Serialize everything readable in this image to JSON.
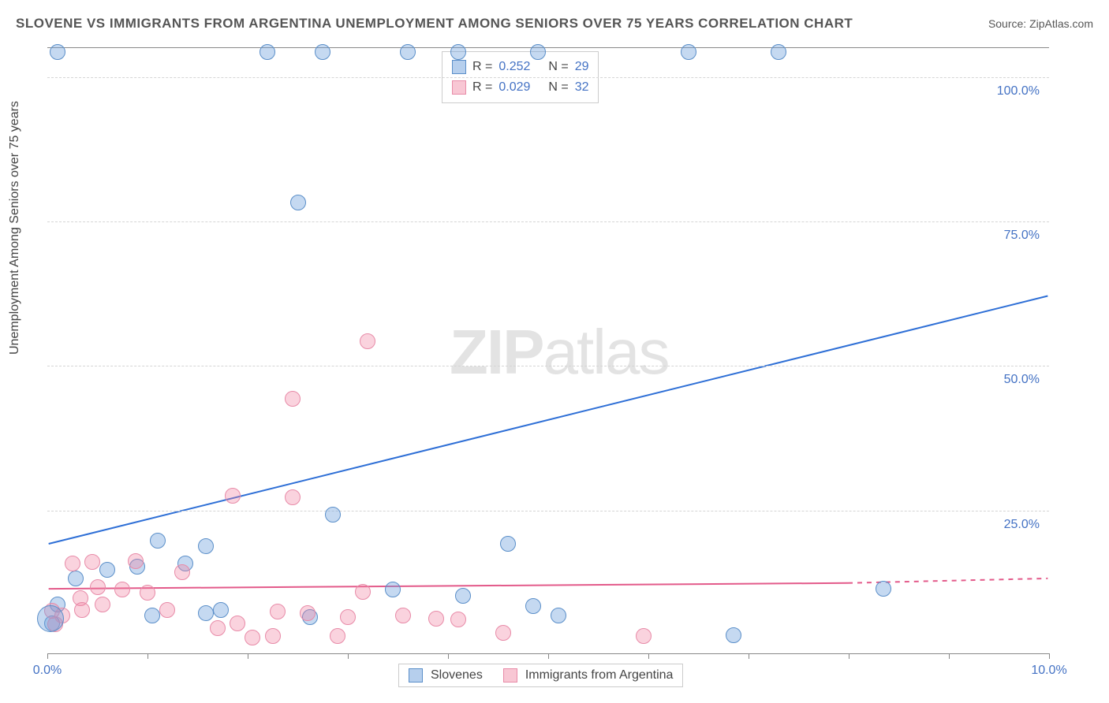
{
  "title": "SLOVENE VS IMMIGRANTS FROM ARGENTINA UNEMPLOYMENT AMONG SENIORS OVER 75 YEARS CORRELATION CHART",
  "source": "Source: ZipAtlas.com",
  "ylabel": "Unemployment Among Seniors over 75 years",
  "watermark_a": "ZIP",
  "watermark_b": "atlas",
  "chart": {
    "type": "scatter",
    "xlim": [
      0,
      10
    ],
    "ylim": [
      0,
      105
    ],
    "xtick_positions": [
      0,
      1,
      2,
      3,
      4,
      5,
      6,
      7,
      8,
      9,
      10
    ],
    "xtick_labels": {
      "0": "0.0%",
      "10": "10.0%"
    },
    "ytick_positions": [
      25,
      50,
      75,
      100
    ],
    "ytick_labels": [
      "25.0%",
      "50.0%",
      "75.0%",
      "100.0%"
    ],
    "grid_color": "#d5d5d5",
    "background_color": "#ffffff",
    "marker_radius": 10,
    "series": {
      "blue": {
        "label": "Slovenes",
        "fill": "rgba(110,160,220,0.4)",
        "stroke": "#5b8fc9",
        "R": "0.252",
        "N": "29",
        "trend": {
          "x1": 0,
          "y1": 19,
          "x2": 10,
          "y2": 62,
          "color": "#2e6fd6",
          "width": 2
        },
        "points": [
          [
            2.2,
            104
          ],
          [
            2.75,
            104
          ],
          [
            3.6,
            104
          ],
          [
            4.1,
            104
          ],
          [
            4.9,
            104
          ],
          [
            6.4,
            104
          ],
          [
            7.3,
            104
          ],
          [
            0.1,
            104
          ],
          [
            2.5,
            78
          ],
          [
            4.6,
            19
          ],
          [
            2.85,
            24
          ],
          [
            0.28,
            13
          ],
          [
            0.6,
            14.5
          ],
          [
            0.9,
            15
          ],
          [
            1.1,
            19.5
          ],
          [
            1.38,
            15.5
          ],
          [
            1.58,
            18.5
          ],
          [
            0.1,
            8.5
          ],
          [
            1.05,
            6.5
          ],
          [
            1.73,
            7.5
          ],
          [
            1.58,
            7
          ],
          [
            0.05,
            5.2
          ],
          [
            3.45,
            11
          ],
          [
            4.15,
            10
          ],
          [
            4.85,
            8.2
          ],
          [
            5.1,
            6.5
          ],
          [
            8.35,
            11.2
          ],
          [
            6.85,
            3.2
          ],
          [
            2.62,
            6.3
          ]
        ]
      },
      "pink": {
        "label": "Immigants from Argentina",
        "fill": "rgba(240,130,160,0.35)",
        "stroke": "#e88ba8",
        "R": "0.029",
        "N": "32",
        "trend": {
          "x1": 0,
          "y1": 11.2,
          "x2": 8.0,
          "y2": 12.2,
          "dash_x2": 10,
          "dash_y2": 13.0,
          "color": "#e35a8a",
          "width": 2
        },
        "points": [
          [
            3.2,
            54
          ],
          [
            2.45,
            44
          ],
          [
            2.45,
            27
          ],
          [
            1.85,
            27.3
          ],
          [
            0.33,
            9.5
          ],
          [
            0.5,
            11.5
          ],
          [
            0.55,
            8.5
          ],
          [
            0.75,
            11
          ],
          [
            0.88,
            16
          ],
          [
            1.0,
            10.5
          ],
          [
            1.2,
            7.5
          ],
          [
            1.35,
            14
          ],
          [
            0.15,
            6.5
          ],
          [
            0.05,
            7.3
          ],
          [
            0.08,
            5.0
          ],
          [
            1.7,
            4.3
          ],
          [
            1.9,
            5.2
          ],
          [
            2.05,
            2.7
          ],
          [
            2.25,
            3.0
          ],
          [
            2.3,
            7.2
          ],
          [
            2.6,
            7.0
          ],
          [
            2.9,
            3.0
          ],
          [
            3.0,
            6.3
          ],
          [
            3.15,
            10.6
          ],
          [
            3.55,
            6.5
          ],
          [
            3.88,
            6.0
          ],
          [
            4.1,
            5.8
          ],
          [
            4.55,
            3.5
          ],
          [
            5.95,
            3.0
          ],
          [
            0.25,
            15.5
          ],
          [
            0.45,
            15.8
          ],
          [
            0.35,
            7.5
          ]
        ]
      }
    }
  },
  "stats_layout": {
    "cols": [
      "R =",
      "N ="
    ]
  },
  "legend": {
    "items": [
      "Slovenes",
      "Immigrants from Argentina"
    ]
  }
}
